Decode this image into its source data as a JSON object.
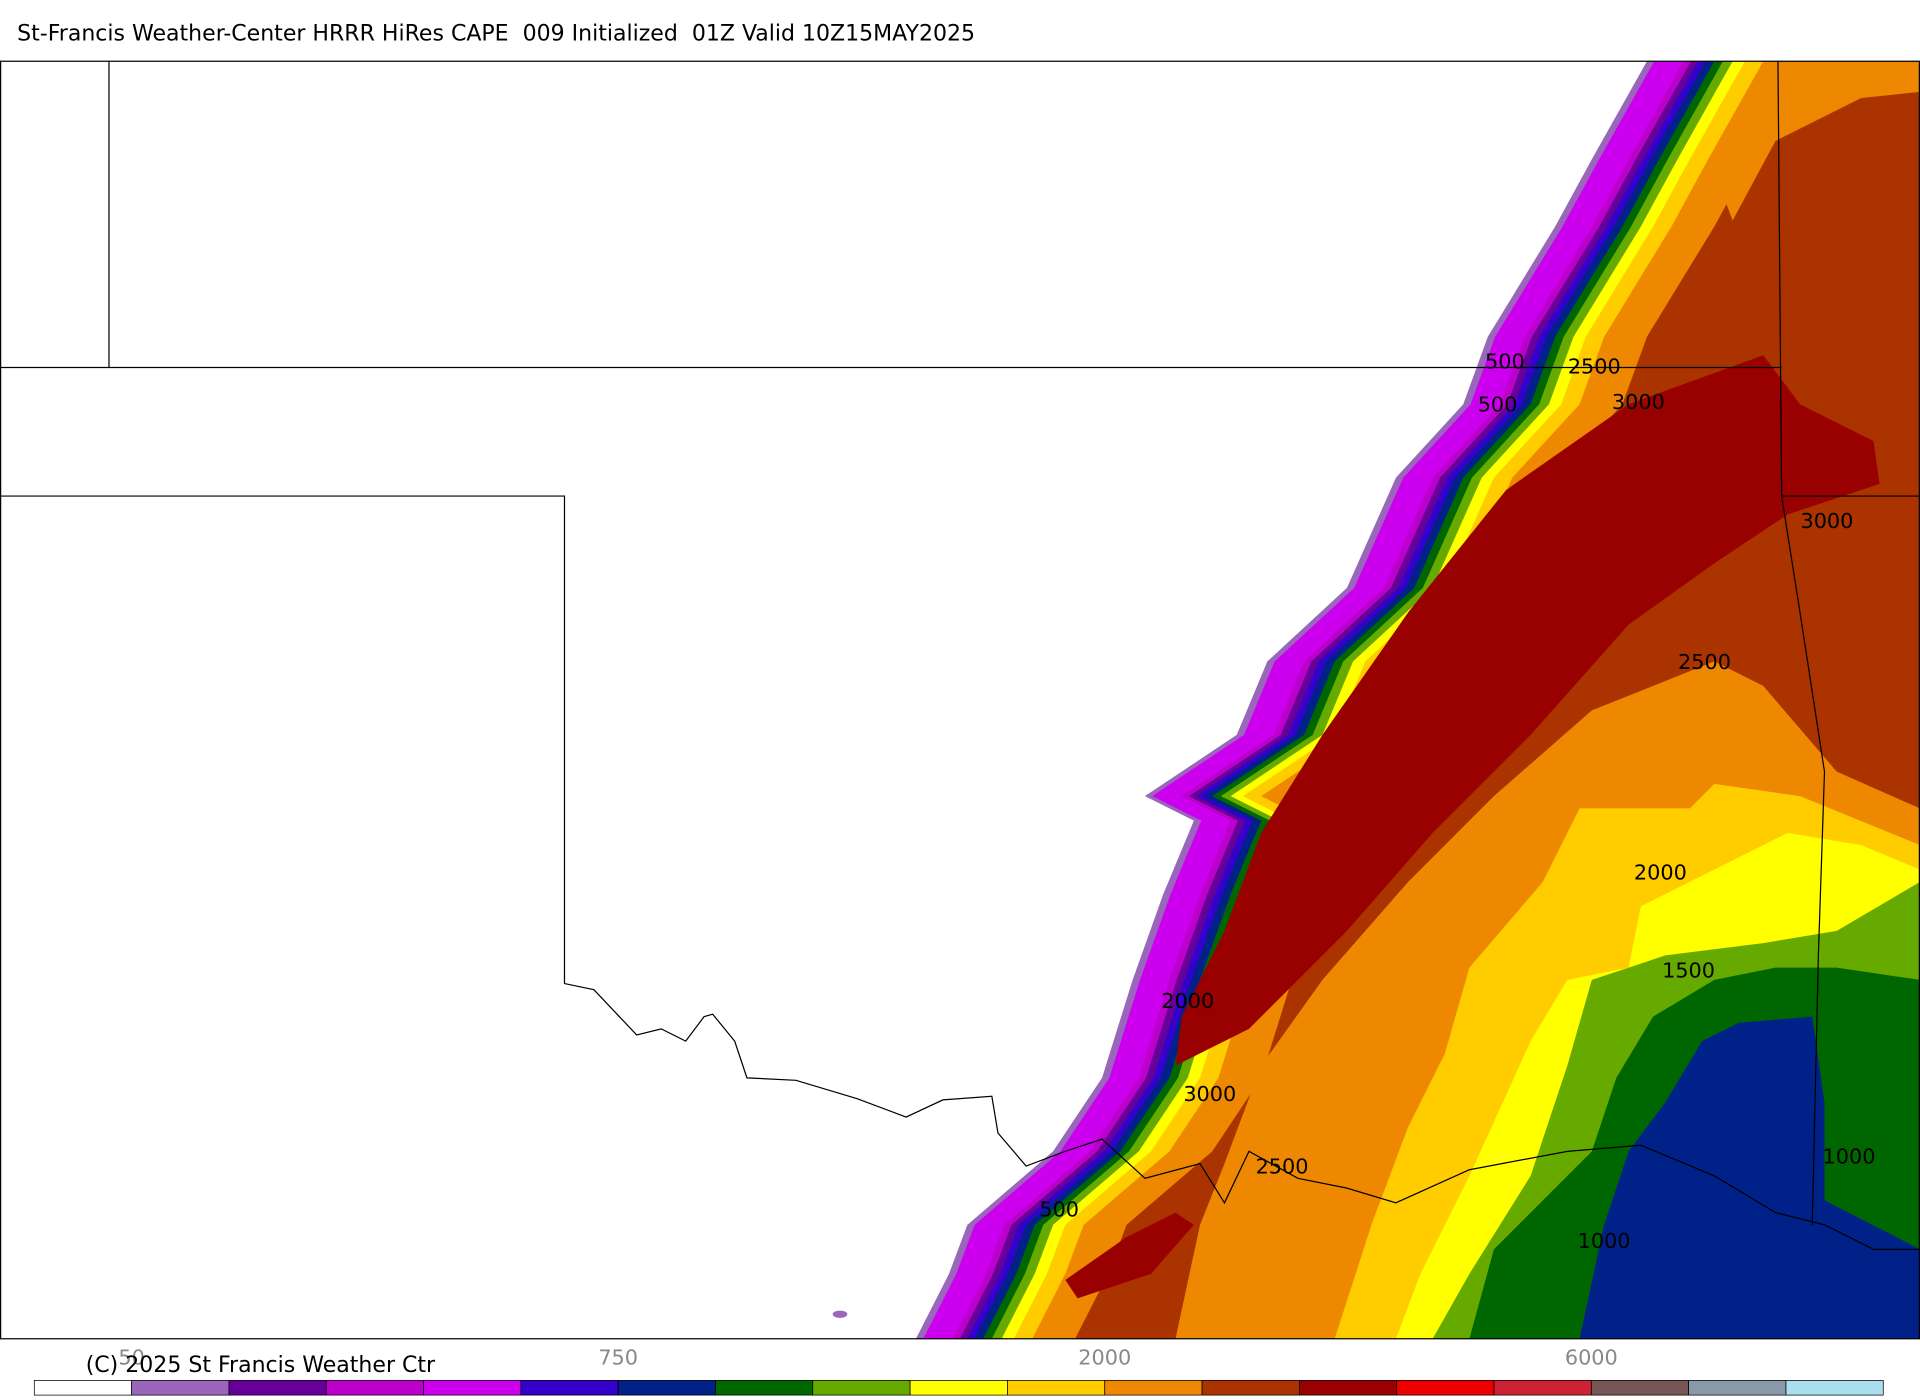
{
  "header": {
    "title": "St-Francis Weather-Center HRRR HiRes CAPE  009 Initialized  01Z Valid 10Z15MAY2025"
  },
  "map": {
    "contour_labels": [
      500,
      2500,
      500,
      3000,
      3000,
      2500,
      2000,
      1500,
      2000,
      3000,
      2500,
      1000,
      500,
      1000
    ]
  },
  "colorbar": {
    "colors": [
      "#ffffff",
      "#9966bb",
      "#660099",
      "#bb00cc",
      "#cc00ee",
      "#3300cc",
      "#002288",
      "#006600",
      "#66aa00",
      "#ffff00",
      "#ffcc00",
      "#ee8800",
      "#aa3300",
      "#990000",
      "#ee0000",
      "#cc2233",
      "#775555",
      "#8899aa",
      "#aaddee"
    ],
    "labels": [
      50,
      750,
      2000,
      6000
    ]
  },
  "footer": {
    "copyright": "(C) 2025 St Francis Weather Ctr"
  }
}
